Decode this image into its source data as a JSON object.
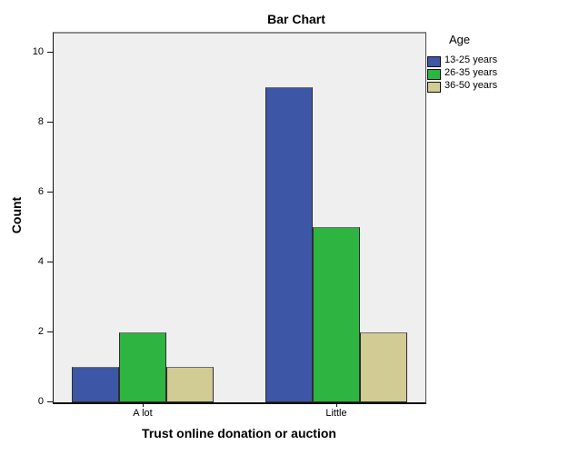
{
  "chart_data": {
    "type": "bar",
    "title": "Bar Chart",
    "xlabel": "Trust online donation or auction",
    "ylabel": "Count",
    "categories": [
      "A lot",
      "Little"
    ],
    "series": [
      {
        "name": "13-25 years",
        "color": "#3d56a5",
        "values": [
          1,
          9
        ]
      },
      {
        "name": "26-35 years",
        "color": "#2eb440",
        "values": [
          2,
          5
        ]
      },
      {
        "name": "36-50 years",
        "color": "#d1cb94",
        "values": [
          1,
          2
        ]
      }
    ],
    "legend_title": "Age",
    "legend_position": "right",
    "ylim": [
      0,
      10.54
    ],
    "yticks": [
      0,
      2,
      4,
      6,
      8,
      10
    ],
    "grid": false,
    "plot_background": "#efefef",
    "bar_border_color": "#2e2e2e"
  }
}
